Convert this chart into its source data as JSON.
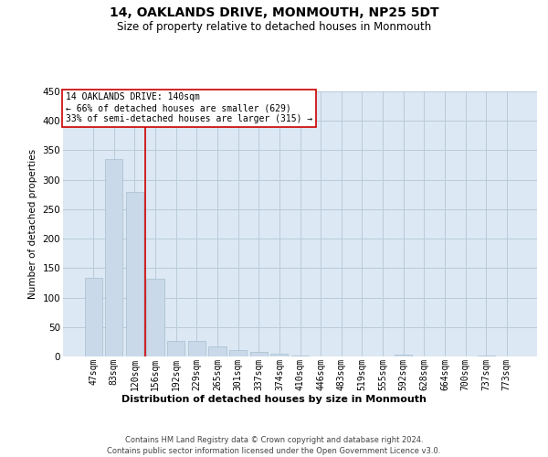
{
  "title": "14, OAKLANDS DRIVE, MONMOUTH, NP25 5DT",
  "subtitle": "Size of property relative to detached houses in Monmouth",
  "xlabel": "Distribution of detached houses by size in Monmouth",
  "ylabel": "Number of detached properties",
  "bar_color": "#c9d9ea",
  "bar_edge_color": "#a8bece",
  "grid_color": "#b8ccd8",
  "background_color": "#dce8f4",
  "categories": [
    "47sqm",
    "83sqm",
    "120sqm",
    "156sqm",
    "192sqm",
    "229sqm",
    "265sqm",
    "301sqm",
    "337sqm",
    "374sqm",
    "410sqm",
    "446sqm",
    "483sqm",
    "519sqm",
    "555sqm",
    "592sqm",
    "628sqm",
    "664sqm",
    "700sqm",
    "737sqm",
    "773sqm"
  ],
  "values": [
    133,
    335,
    280,
    132,
    27,
    26,
    17,
    11,
    7,
    5,
    2,
    0,
    0,
    0,
    0,
    3,
    0,
    0,
    0,
    2,
    0
  ],
  "vline_x": 2.5,
  "annotation_title": "14 OAKLANDS DRIVE: 140sqm",
  "annotation_line1": "← 66% of detached houses are smaller (629)",
  "annotation_line2": "33% of semi-detached houses are larger (315) →",
  "vline_color": "#cc0000",
  "annotation_box_color": "#ffffff",
  "annotation_box_edge": "#cc0000",
  "footer_line1": "Contains HM Land Registry data © Crown copyright and database right 2024.",
  "footer_line2": "Contains public sector information licensed under the Open Government Licence v3.0.",
  "ylim": [
    0,
    450
  ],
  "yticks": [
    0,
    50,
    100,
    150,
    200,
    250,
    300,
    350,
    400,
    450
  ],
  "title_fontsize": 10,
  "subtitle_fontsize": 8.5,
  "ylabel_fontsize": 7.5,
  "xlabel_fontsize": 8,
  "tick_fontsize": 7,
  "footer_fontsize": 6,
  "annot_fontsize": 7
}
